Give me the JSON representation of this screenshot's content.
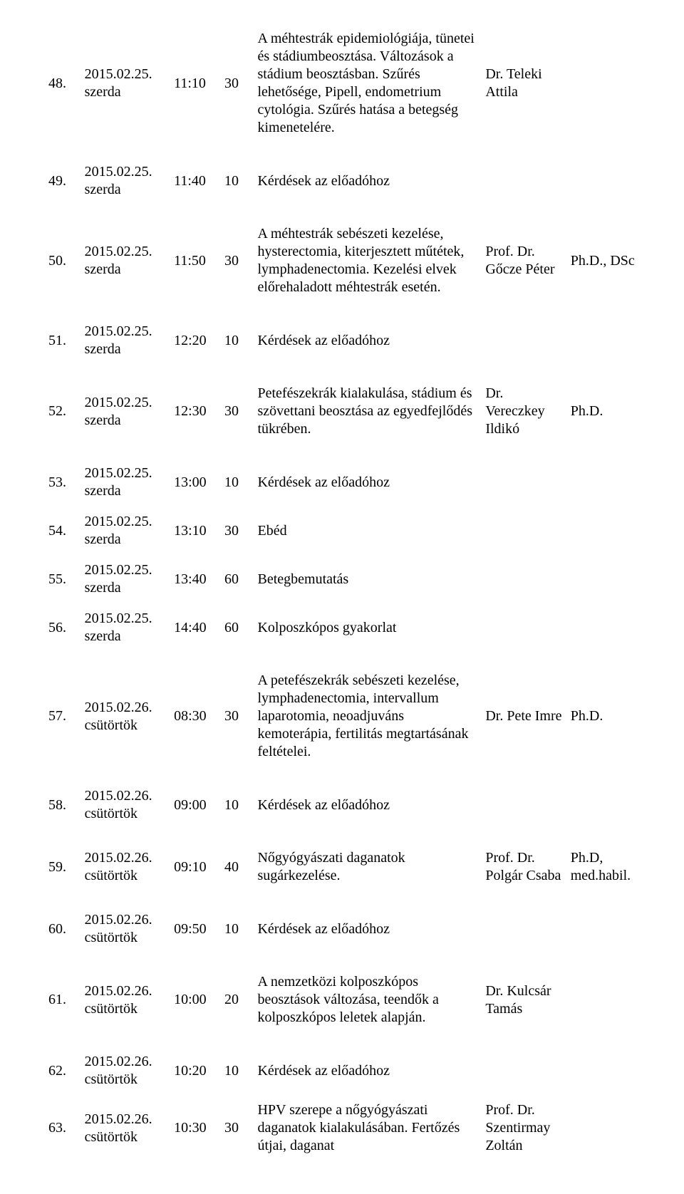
{
  "rows": [
    {
      "num": "48.",
      "date_line1": "2015.02.25.",
      "date_line2": "szerda",
      "time": "11:10",
      "duration": "30",
      "topic": "A méhtestrák epidemiológiája, tünetei és stádiumbeosztása. Változások a stádium beosztásban. Szűrés lehetősége, Pipell, endometrium cytológia. Szűrés hatása a betegség kimenetelére.",
      "presenter": "Dr. Teleki Attila",
      "degree": ""
    },
    {
      "num": "49.",
      "date_line1": "2015.02.25.",
      "date_line2": "szerda",
      "time": "11:40",
      "duration": "10",
      "topic": "Kérdések az előadóhoz",
      "presenter": "",
      "degree": ""
    },
    {
      "num": "50.",
      "date_line1": "2015.02.25.",
      "date_line2": "szerda",
      "time": "11:50",
      "duration": "30",
      "topic": "A méhtestrák sebészeti kezelése, hysterectomia, kiterjesztett műtétek, lymphadenectomia. Kezelési elvek előrehaladott méhtestrák esetén.",
      "presenter": "Prof. Dr. Gőcze Péter",
      "degree": "Ph.D., DSc"
    },
    {
      "num": "51.",
      "date_line1": "2015.02.25.",
      "date_line2": "szerda",
      "time": "12:20",
      "duration": "10",
      "topic": "Kérdések az előadóhoz",
      "presenter": "",
      "degree": ""
    },
    {
      "num": "52.",
      "date_line1": "2015.02.25.",
      "date_line2": "szerda",
      "time": "12:30",
      "duration": "30",
      "topic": "Petefészekrák kialakulása, stádium és szövettani beosztása az egyedfejlődés tükrében.",
      "presenter": "Dr. Vereczkey Ildikó",
      "degree": "Ph.D."
    },
    {
      "num": "53.",
      "date_line1": "2015.02.25.",
      "date_line2": "szerda",
      "time": "13:00",
      "duration": "10",
      "topic": "Kérdések az előadóhoz",
      "presenter": "",
      "degree": ""
    },
    {
      "num": "54.",
      "date_line1": "2015.02.25.",
      "date_line2": "szerda",
      "time": "13:10",
      "duration": "30",
      "topic": "Ebéd",
      "presenter": "",
      "degree": ""
    },
    {
      "num": "55.",
      "date_line1": "2015.02.25.",
      "date_line2": "szerda",
      "time": "13:40",
      "duration": "60",
      "topic": "Betegbemutatás",
      "presenter": "",
      "degree": ""
    },
    {
      "num": "56.",
      "date_line1": "2015.02.25.",
      "date_line2": "szerda",
      "time": "14:40",
      "duration": "60",
      "topic": "Kolposzkópos gyakorlat",
      "presenter": "",
      "degree": ""
    },
    {
      "num": "57.",
      "date_line1": "2015.02.26.",
      "date_line2": "csütörtök",
      "time": "08:30",
      "duration": "30",
      "topic": "A petefészekrák sebészeti kezelése, lymphadenectomia, intervallum laparotomia, neoadjuváns kemoterápia, fertilitás megtartásának feltételei.",
      "presenter": "Dr. Pete Imre",
      "degree": "Ph.D."
    },
    {
      "num": "58.",
      "date_line1": "2015.02.26.",
      "date_line2": "csütörtök",
      "time": "09:00",
      "duration": "10",
      "topic": "Kérdések az előadóhoz",
      "presenter": "",
      "degree": ""
    },
    {
      "num": "59.",
      "date_line1": "2015.02.26.",
      "date_line2": "csütörtök",
      "time": "09:10",
      "duration": "40",
      "topic": "Nőgyógyászati daganatok sugárkezelése.",
      "presenter": "Prof. Dr. Polgár Csaba",
      "degree": "Ph.D, med.habil."
    },
    {
      "num": "60.",
      "date_line1": "2015.02.26.",
      "date_line2": "csütörtök",
      "time": "09:50",
      "duration": "10",
      "topic": "Kérdések az előadóhoz",
      "presenter": "",
      "degree": ""
    },
    {
      "num": "61.",
      "date_line1": "2015.02.26.",
      "date_line2": "csütörtök",
      "time": "10:00",
      "duration": "20",
      "topic": "A nemzetközi kolposzkópos beosztások változása, teendők a kolposzkópos leletek alapján.",
      "presenter": "Dr. Kulcsár Tamás",
      "degree": ""
    },
    {
      "num": "62.",
      "date_line1": "2015.02.26.",
      "date_line2": "csütörtök",
      "time": "10:20",
      "duration": "10",
      "topic": "Kérdések az előadóhoz",
      "presenter": "",
      "degree": ""
    },
    {
      "num": "63.",
      "date_line1": "2015.02.26.",
      "date_line2": "csütörtök",
      "time": "10:30",
      "duration": "30",
      "topic": "HPV szerepe a nőgyógyászati daganatok kialakulásában. Fertőzés útjai, daganat",
      "presenter": "Prof. Dr. Szentirmay Zoltán",
      "degree": ""
    }
  ],
  "tall_indices": [
    0,
    2,
    4,
    9,
    11,
    13
  ],
  "colors": {
    "text": "#000000",
    "background": "#ffffff"
  },
  "typography": {
    "family": "Times New Roman",
    "size_pt": 15
  }
}
